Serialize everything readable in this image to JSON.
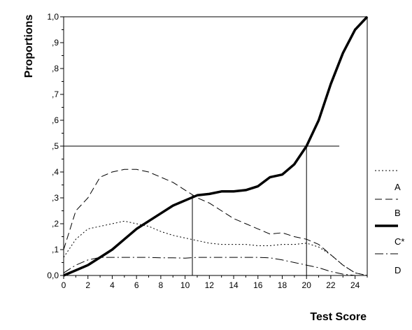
{
  "chart_data": {
    "type": "line",
    "xlabel": "Test Score",
    "ylabel": "Proportions",
    "xlim": [
      0,
      25
    ],
    "ylim": [
      0,
      1
    ],
    "x_ticks": [
      0,
      2,
      4,
      6,
      8,
      10,
      12,
      14,
      16,
      18,
      20,
      22,
      24
    ],
    "y_tick_labels": [
      "0,0",
      ",1",
      ",2",
      ",3",
      ",4",
      ",5",
      ",6",
      ",7",
      ",8",
      ",9",
      "1,0"
    ],
    "grid": false,
    "legend_position": "right",
    "series": [
      {
        "name": "A",
        "style": "dotted",
        "x": [
          0,
          1,
          2,
          3,
          4,
          5,
          6,
          7,
          8,
          9,
          10,
          11,
          12,
          13,
          14,
          15,
          16,
          17,
          18,
          19,
          20,
          21,
          22,
          23,
          24,
          25
        ],
        "values": [
          0.07,
          0.14,
          0.18,
          0.19,
          0.2,
          0.21,
          0.2,
          0.19,
          0.17,
          0.155,
          0.145,
          0.135,
          0.125,
          0.12,
          0.12,
          0.12,
          0.115,
          0.115,
          0.12,
          0.12,
          0.125,
          0.11,
          0.08,
          0.04,
          0.01,
          0.0
        ]
      },
      {
        "name": "B",
        "style": "dashed",
        "x": [
          0,
          1,
          2,
          3,
          4,
          5,
          6,
          7,
          8,
          9,
          10,
          11,
          12,
          13,
          14,
          15,
          16,
          17,
          18,
          19,
          20,
          21,
          22,
          23,
          24,
          25
        ],
        "values": [
          0.1,
          0.25,
          0.3,
          0.38,
          0.4,
          0.41,
          0.41,
          0.4,
          0.38,
          0.36,
          0.33,
          0.3,
          0.28,
          0.25,
          0.22,
          0.2,
          0.18,
          0.16,
          0.165,
          0.15,
          0.14,
          0.12,
          0.08,
          0.04,
          0.01,
          0.0
        ]
      },
      {
        "name": "C*",
        "style": "thick-solid",
        "x": [
          0,
          1,
          2,
          3,
          4,
          5,
          6,
          7,
          8,
          9,
          10,
          11,
          12,
          13,
          14,
          15,
          16,
          17,
          18,
          19,
          20,
          21,
          22,
          23,
          24,
          25
        ],
        "values": [
          0.0,
          0.02,
          0.04,
          0.07,
          0.1,
          0.14,
          0.18,
          0.21,
          0.24,
          0.27,
          0.29,
          0.31,
          0.315,
          0.325,
          0.325,
          0.33,
          0.345,
          0.38,
          0.39,
          0.43,
          0.5,
          0.6,
          0.74,
          0.86,
          0.95,
          1.0
        ]
      },
      {
        "name": "D",
        "style": "dash-dot",
        "x": [
          0,
          1,
          2,
          3,
          4,
          5,
          6,
          7,
          8,
          9,
          10,
          11,
          12,
          13,
          14,
          15,
          16,
          17,
          18,
          19,
          20,
          21,
          22,
          23,
          24,
          25
        ],
        "values": [
          0.01,
          0.04,
          0.06,
          0.07,
          0.07,
          0.07,
          0.07,
          0.07,
          0.068,
          0.068,
          0.067,
          0.07,
          0.07,
          0.07,
          0.07,
          0.07,
          0.07,
          0.068,
          0.06,
          0.05,
          0.04,
          0.03,
          0.015,
          0.005,
          0.0,
          0.0
        ]
      }
    ],
    "reference_lines": {
      "horizontal_y": 0.5,
      "horizontal_x_end": 22.7,
      "vertical_x": [
        10.6,
        20.0
      ],
      "vertical_y_tops": [
        0.31,
        0.5
      ]
    }
  }
}
